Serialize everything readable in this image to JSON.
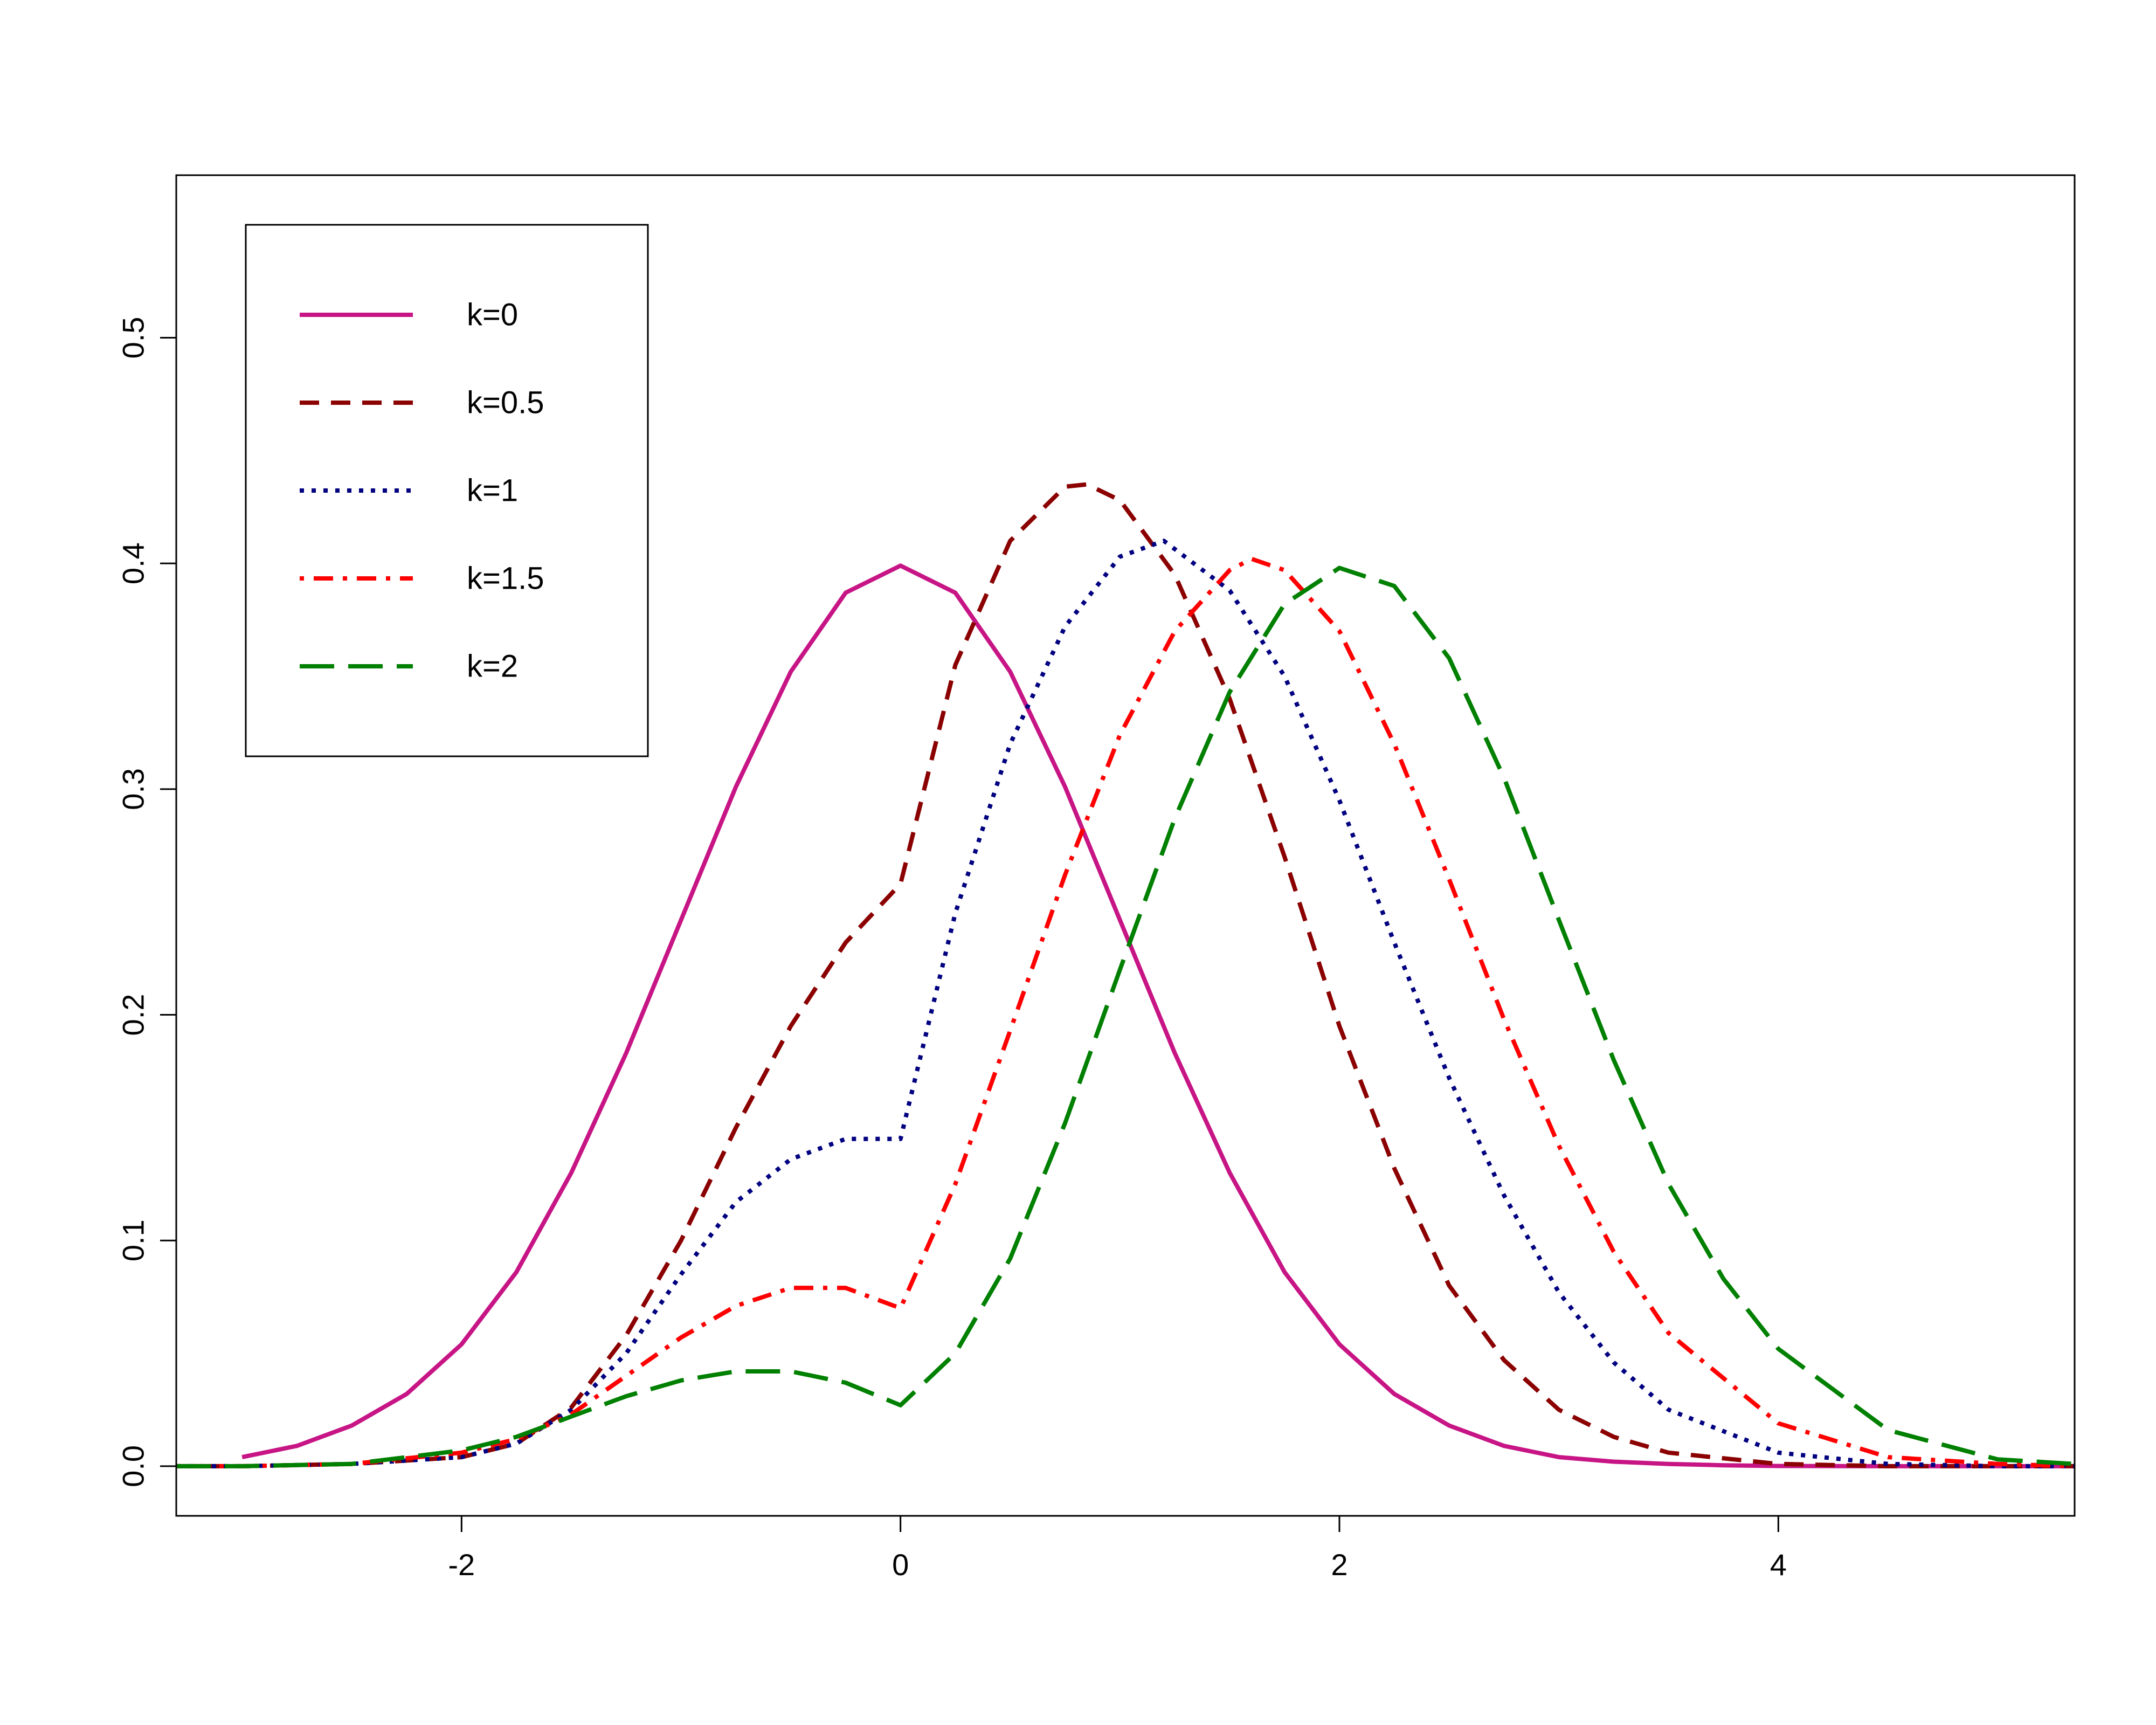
{
  "chart_data": {
    "type": "line",
    "title": "",
    "xlabel": "",
    "ylabel": "",
    "xlim": [
      -3.3,
      5.35
    ],
    "ylim": [
      -0.022,
      0.572
    ],
    "x_ticks": [
      -2,
      0,
      2,
      4
    ],
    "x_tick_labels": [
      "-2",
      "0",
      "2",
      "4"
    ],
    "y_ticks": [
      0.0,
      0.1,
      0.2,
      0.3,
      0.4,
      0.5
    ],
    "y_tick_labels": [
      "0.0",
      "0.1",
      "0.2",
      "0.3",
      "0.4",
      "0.5"
    ],
    "grid": false,
    "legend_position": "top-left",
    "series": [
      {
        "name": "k=0",
        "color": "#C71585",
        "line_style": "solid",
        "x": [
          -3.0,
          -2.75,
          -2.5,
          -2.25,
          -2.0,
          -1.75,
          -1.5,
          -1.25,
          -1.0,
          -0.75,
          -0.5,
          -0.25,
          0.0,
          0.25,
          0.5,
          0.75,
          1.0,
          1.25,
          1.5,
          1.75,
          2.0,
          2.25,
          2.5,
          2.75,
          3.0,
          3.25,
          3.5,
          3.75,
          4.0,
          4.5,
          5.0,
          5.35
        ],
        "y": [
          0.004,
          0.009,
          0.018,
          0.032,
          0.054,
          0.086,
          0.13,
          0.183,
          0.242,
          0.301,
          0.352,
          0.387,
          0.399,
          0.387,
          0.352,
          0.301,
          0.242,
          0.183,
          0.13,
          0.086,
          0.054,
          0.032,
          0.018,
          0.009,
          0.004,
          0.002,
          0.001,
          0.0004,
          0.0001,
          0.0,
          0.0,
          0.0
        ]
      },
      {
        "name": "k=0.5",
        "color": "#8B0000",
        "line_style": "dashed",
        "x": [
          -3.3,
          -3.0,
          -2.5,
          -2.0,
          -1.75,
          -1.5,
          -1.25,
          -1.0,
          -0.75,
          -0.5,
          -0.25,
          0.0,
          0.25,
          0.5,
          0.75,
          0.85,
          1.0,
          1.25,
          1.5,
          1.75,
          2.0,
          2.25,
          2.5,
          2.75,
          3.0,
          3.25,
          3.5,
          4.0,
          4.5,
          5.35
        ],
        "y": [
          0.0,
          0.0,
          0.001,
          0.004,
          0.01,
          0.026,
          0.058,
          0.1,
          0.15,
          0.195,
          0.232,
          0.258,
          0.355,
          0.41,
          0.434,
          0.435,
          0.428,
          0.395,
          0.34,
          0.27,
          0.195,
          0.132,
          0.08,
          0.047,
          0.025,
          0.013,
          0.006,
          0.001,
          0.0,
          0.0
        ]
      },
      {
        "name": "k=1",
        "color": "#000080",
        "line_style": "dotted",
        "x": [
          -3.3,
          -3.0,
          -2.5,
          -2.0,
          -1.75,
          -1.5,
          -1.25,
          -1.0,
          -0.75,
          -0.5,
          -0.25,
          0.0,
          0.25,
          0.5,
          0.75,
          1.0,
          1.2,
          1.5,
          1.75,
          2.0,
          2.25,
          2.5,
          2.75,
          3.0,
          3.25,
          3.5,
          4.0,
          4.5,
          5.0,
          5.35
        ],
        "y": [
          0.0,
          0.0,
          0.001,
          0.004,
          0.01,
          0.025,
          0.05,
          0.085,
          0.117,
          0.136,
          0.145,
          0.145,
          0.245,
          0.32,
          0.372,
          0.403,
          0.41,
          0.388,
          0.35,
          0.295,
          0.232,
          0.172,
          0.12,
          0.077,
          0.046,
          0.025,
          0.006,
          0.001,
          0.0,
          0.0
        ]
      },
      {
        "name": "k=1.5",
        "color": "#FF0000",
        "line_style": "dotdash",
        "x": [
          -3.3,
          -3.0,
          -2.5,
          -2.0,
          -1.75,
          -1.5,
          -1.25,
          -1.0,
          -0.75,
          -0.5,
          -0.25,
          0.0,
          0.25,
          0.5,
          0.75,
          1.0,
          1.25,
          1.5,
          1.6,
          1.75,
          2.0,
          2.25,
          2.5,
          2.75,
          3.0,
          3.25,
          3.5,
          4.0,
          4.5,
          5.0,
          5.35
        ],
        "y": [
          0.0,
          0.0,
          0.001,
          0.006,
          0.012,
          0.023,
          0.04,
          0.057,
          0.071,
          0.079,
          0.079,
          0.07,
          0.125,
          0.193,
          0.262,
          0.324,
          0.37,
          0.397,
          0.402,
          0.397,
          0.37,
          0.32,
          0.26,
          0.198,
          0.142,
          0.095,
          0.059,
          0.019,
          0.004,
          0.001,
          0.0
        ]
      },
      {
        "name": "k=2",
        "color": "#008000",
        "line_style": "longdash",
        "x": [
          -3.3,
          -3.0,
          -2.5,
          -2.0,
          -1.75,
          -1.5,
          -1.25,
          -1.0,
          -0.75,
          -0.5,
          -0.25,
          0.0,
          0.25,
          0.5,
          0.75,
          1.0,
          1.25,
          1.5,
          1.75,
          2.0,
          2.25,
          2.5,
          2.75,
          3.0,
          3.25,
          3.5,
          3.75,
          4.0,
          4.5,
          5.0,
          5.35
        ],
        "y": [
          0.0,
          0.0,
          0.001,
          0.007,
          0.013,
          0.022,
          0.031,
          0.038,
          0.042,
          0.042,
          0.037,
          0.027,
          0.05,
          0.092,
          0.152,
          0.22,
          0.287,
          0.343,
          0.382,
          0.398,
          0.39,
          0.358,
          0.305,
          0.242,
          0.18,
          0.125,
          0.083,
          0.052,
          0.016,
          0.003,
          0.001
        ]
      }
    ]
  }
}
